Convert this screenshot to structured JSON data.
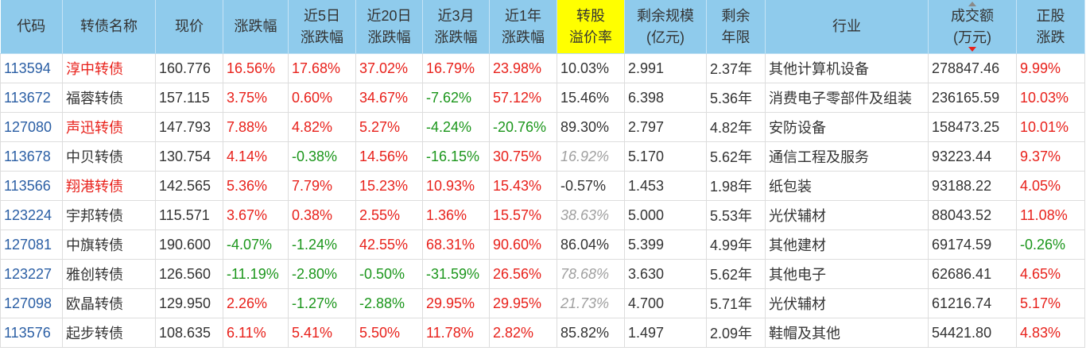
{
  "colors": {
    "header_bg": "#8fcbec",
    "header_highlight_bg": "#ffff00",
    "header_text": "#333333",
    "code_link": "#2a5ea4",
    "text": "#333333",
    "rise": "#e8211b",
    "fall": "#1b961b",
    "muted": "#a0a0a0",
    "sort_active": "#e8211b",
    "sort_inactive": "#8a8a8a"
  },
  "columns": [
    {
      "lines": [
        "代码"
      ]
    },
    {
      "lines": [
        "转债名称"
      ]
    },
    {
      "lines": [
        "现价"
      ]
    },
    {
      "lines": [
        "涨跌幅"
      ]
    },
    {
      "lines": [
        "近5日",
        "涨跌幅"
      ]
    },
    {
      "lines": [
        "近20日",
        "涨跌幅"
      ]
    },
    {
      "lines": [
        "近3月",
        "涨跌幅"
      ]
    },
    {
      "lines": [
        "近1年",
        "涨跌幅"
      ]
    },
    {
      "lines": [
        "转股",
        "溢价率"
      ],
      "highlighted": true
    },
    {
      "lines": [
        "剩余规模",
        "(亿元)"
      ]
    },
    {
      "lines": [
        "剩余",
        "年限"
      ]
    },
    {
      "lines": [
        "行业"
      ]
    },
    {
      "lines": [
        "成交额",
        "(万元)"
      ],
      "sorted_descending": true
    },
    {
      "lines": [
        "正股",
        "涨跌"
      ]
    }
  ],
  "rows": [
    {
      "code": "113594",
      "name": "淳中转债",
      "name_color": "#e8211b",
      "price": "160.776",
      "change": "16.56%",
      "change_5d": "17.68%",
      "change_20d": "37.02%",
      "change_3m": "16.79%",
      "change_1y": "23.98%",
      "premium": "10.03%",
      "premium_italic": false,
      "remaining_size": "2.991",
      "remaining_years": "2.37年",
      "industry": "其他计算机设备",
      "turnover": "278847.46",
      "stock_change": "9.99%"
    },
    {
      "code": "113672",
      "name": "福蓉转债",
      "name_color": "#333333",
      "price": "157.115",
      "change": "3.75%",
      "change_5d": "0.60%",
      "change_20d": "34.67%",
      "change_3m": "-7.62%",
      "change_1y": "57.12%",
      "premium": "15.46%",
      "premium_italic": false,
      "remaining_size": "6.398",
      "remaining_years": "5.36年",
      "industry": "消费电子零部件及组装",
      "turnover": "236165.59",
      "stock_change": "10.03%"
    },
    {
      "code": "127080",
      "name": "声迅转债",
      "name_color": "#e8211b",
      "price": "147.793",
      "change": "7.88%",
      "change_5d": "4.82%",
      "change_20d": "5.27%",
      "change_3m": "-4.24%",
      "change_1y": "-20.76%",
      "premium": "89.30%",
      "premium_italic": false,
      "remaining_size": "2.797",
      "remaining_years": "4.82年",
      "industry": "安防设备",
      "turnover": "158473.25",
      "stock_change": "10.01%"
    },
    {
      "code": "113678",
      "name": "中贝转债",
      "name_color": "#333333",
      "price": "130.754",
      "change": "4.14%",
      "change_5d": "-0.38%",
      "change_20d": "14.56%",
      "change_3m": "-16.15%",
      "change_1y": "30.75%",
      "premium": "16.92%",
      "premium_italic": true,
      "remaining_size": "5.170",
      "remaining_years": "5.62年",
      "industry": "通信工程及服务",
      "turnover": "93223.44",
      "stock_change": "9.37%"
    },
    {
      "code": "113566",
      "name": "翔港转债",
      "name_color": "#e8211b",
      "price": "142.565",
      "change": "5.36%",
      "change_5d": "7.79%",
      "change_20d": "15.23%",
      "change_3m": "10.93%",
      "change_1y": "15.43%",
      "premium": "-0.57%",
      "premium_italic": false,
      "remaining_size": "1.453",
      "remaining_years": "1.98年",
      "industry": "纸包装",
      "turnover": "93188.22",
      "stock_change": "4.05%"
    },
    {
      "code": "123224",
      "name": "宇邦转债",
      "name_color": "#333333",
      "price": "115.571",
      "change": "3.67%",
      "change_5d": "0.38%",
      "change_20d": "2.55%",
      "change_3m": "1.36%",
      "change_1y": "15.57%",
      "premium": "38.63%",
      "premium_italic": true,
      "remaining_size": "5.000",
      "remaining_years": "5.53年",
      "industry": "光伏辅材",
      "turnover": "88043.52",
      "stock_change": "11.08%"
    },
    {
      "code": "127081",
      "name": "中旗转债",
      "name_color": "#333333",
      "price": "190.600",
      "change": "-4.07%",
      "change_5d": "-1.24%",
      "change_20d": "42.55%",
      "change_3m": "68.31%",
      "change_1y": "90.60%",
      "premium": "86.04%",
      "premium_italic": false,
      "remaining_size": "5.399",
      "remaining_years": "4.99年",
      "industry": "其他建材",
      "turnover": "69174.59",
      "stock_change": "-0.26%"
    },
    {
      "code": "123227",
      "name": "雅创转债",
      "name_color": "#333333",
      "price": "126.560",
      "change": "-11.19%",
      "change_5d": "-2.80%",
      "change_20d": "-0.50%",
      "change_3m": "-31.59%",
      "change_1y": "26.56%",
      "premium": "78.68%",
      "premium_italic": true,
      "remaining_size": "3.630",
      "remaining_years": "5.62年",
      "industry": "其他电子",
      "turnover": "62686.41",
      "stock_change": "4.65%"
    },
    {
      "code": "127098",
      "name": "欧晶转债",
      "name_color": "#333333",
      "price": "129.950",
      "change": "2.26%",
      "change_5d": "-1.27%",
      "change_20d": "-2.88%",
      "change_3m": "29.95%",
      "change_1y": "29.95%",
      "premium": "21.73%",
      "premium_italic": true,
      "remaining_size": "4.700",
      "remaining_years": "5.71年",
      "industry": "光伏辅材",
      "turnover": "61216.74",
      "stock_change": "5.17%"
    },
    {
      "code": "113576",
      "name": "起步转债",
      "name_color": "#333333",
      "price": "108.635",
      "change": "6.11%",
      "change_5d": "5.41%",
      "change_20d": "5.50%",
      "change_3m": "11.78%",
      "change_1y": "2.82%",
      "premium": "85.82%",
      "premium_italic": false,
      "remaining_size": "1.497",
      "remaining_years": "2.09年",
      "industry": "鞋帽及其他",
      "turnover": "54421.80",
      "stock_change": "4.83%"
    }
  ]
}
